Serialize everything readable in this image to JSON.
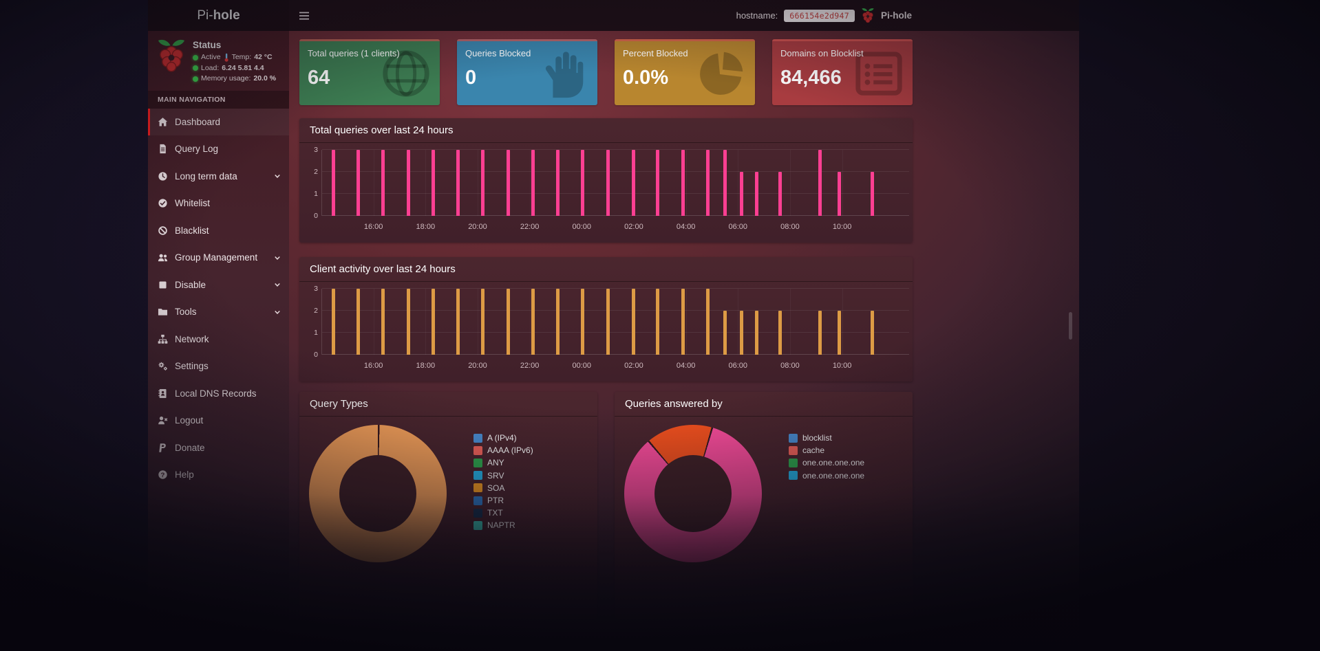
{
  "navbar": {
    "brand_prefix": "Pi-",
    "brand_bold": "hole",
    "hostname_label": "hostname:",
    "hostname_value": "666154e2d947",
    "brand_right": "Pi-hole"
  },
  "sidebar": {
    "status": {
      "title": "Status",
      "active_label": "Active",
      "temp_label": "Temp:",
      "temp_value": "42 °C",
      "load_label": "Load:",
      "load_value": "6.24 5.81 4.4",
      "memory_label": "Memory usage:",
      "memory_value": "20.0 %"
    },
    "section_label": "MAIN NAVIGATION",
    "items": [
      {
        "label": "Dashboard",
        "icon": "home-icon",
        "active": true
      },
      {
        "label": "Query Log",
        "icon": "file-icon"
      },
      {
        "label": "Long term data",
        "icon": "clock-icon",
        "expandable": true
      },
      {
        "label": "Whitelist",
        "icon": "check-circle-icon"
      },
      {
        "label": "Blacklist",
        "icon": "ban-icon"
      },
      {
        "label": "Group Management",
        "icon": "users-icon",
        "expandable": true
      },
      {
        "label": "Disable",
        "icon": "stop-icon",
        "expandable": true
      },
      {
        "label": "Tools",
        "icon": "folder-icon",
        "expandable": true
      },
      {
        "label": "Network",
        "icon": "network-icon"
      },
      {
        "label": "Settings",
        "icon": "gears-icon"
      },
      {
        "label": "Local DNS Records",
        "icon": "address-book-icon"
      },
      {
        "label": "Logout",
        "icon": "logout-icon"
      },
      {
        "label": "Donate",
        "icon": "paypal-icon"
      },
      {
        "label": "Help",
        "icon": "question-icon"
      }
    ]
  },
  "cards": [
    {
      "title": "Total queries (1 clients)",
      "value": "64",
      "color": "#3d7d52",
      "icon": "globe-icon"
    },
    {
      "title": "Queries Blocked",
      "value": "0",
      "color": "#3a85ad",
      "icon": "hand-icon"
    },
    {
      "title": "Percent Blocked",
      "value": "0.0%",
      "color": "#b8862f",
      "icon": "pie-icon"
    },
    {
      "title": "Domains on Blocklist",
      "value": "84,466",
      "color": "#a83c40",
      "icon": "list-icon"
    }
  ],
  "chart_data": [
    {
      "type": "bar",
      "name": "total-queries-chart",
      "title": "Total queries over last 24 hours",
      "color": "#fd3f92",
      "ylim": [
        0,
        3
      ],
      "yticks": [
        0,
        1,
        2,
        3
      ],
      "xticks": [
        "16:00",
        "18:00",
        "20:00",
        "22:00",
        "00:00",
        "02:00",
        "04:00",
        "06:00",
        "08:00",
        "10:00"
      ],
      "xtick_start": 0.0875,
      "xtick_step": 0.0887,
      "bars": [
        {
          "x": 0.016,
          "v": 3
        },
        {
          "x": 0.059,
          "v": 3
        },
        {
          "x": 0.101,
          "v": 3
        },
        {
          "x": 0.144,
          "v": 3
        },
        {
          "x": 0.186,
          "v": 3
        },
        {
          "x": 0.229,
          "v": 3
        },
        {
          "x": 0.271,
          "v": 3
        },
        {
          "x": 0.314,
          "v": 3
        },
        {
          "x": 0.356,
          "v": 3
        },
        {
          "x": 0.399,
          "v": 3
        },
        {
          "x": 0.441,
          "v": 3
        },
        {
          "x": 0.484,
          "v": 3
        },
        {
          "x": 0.527,
          "v": 3
        },
        {
          "x": 0.569,
          "v": 3
        },
        {
          "x": 0.612,
          "v": 3
        },
        {
          "x": 0.654,
          "v": 3
        },
        {
          "x": 0.684,
          "v": 3
        },
        {
          "x": 0.712,
          "v": 2
        },
        {
          "x": 0.737,
          "v": 2
        },
        {
          "x": 0.777,
          "v": 2
        },
        {
          "x": 0.845,
          "v": 3
        },
        {
          "x": 0.878,
          "v": 2
        },
        {
          "x": 0.934,
          "v": 2
        }
      ]
    },
    {
      "type": "bar",
      "name": "client-activity-chart",
      "title": "Client activity over last 24 hours",
      "color": "#dd9b45",
      "ylim": [
        0,
        3
      ],
      "yticks": [
        0,
        1,
        2,
        3
      ],
      "xticks": [
        "16:00",
        "18:00",
        "20:00",
        "22:00",
        "00:00",
        "02:00",
        "04:00",
        "06:00",
        "08:00",
        "10:00"
      ],
      "xtick_start": 0.0875,
      "xtick_step": 0.0887,
      "bars": [
        {
          "x": 0.016,
          "v": 3
        },
        {
          "x": 0.059,
          "v": 3
        },
        {
          "x": 0.101,
          "v": 3
        },
        {
          "x": 0.144,
          "v": 3
        },
        {
          "x": 0.186,
          "v": 3
        },
        {
          "x": 0.229,
          "v": 3
        },
        {
          "x": 0.271,
          "v": 3
        },
        {
          "x": 0.314,
          "v": 3
        },
        {
          "x": 0.356,
          "v": 3
        },
        {
          "x": 0.399,
          "v": 3
        },
        {
          "x": 0.441,
          "v": 3
        },
        {
          "x": 0.484,
          "v": 3
        },
        {
          "x": 0.527,
          "v": 3
        },
        {
          "x": 0.569,
          "v": 3
        },
        {
          "x": 0.612,
          "v": 3
        },
        {
          "x": 0.654,
          "v": 3
        },
        {
          "x": 0.684,
          "v": 2
        },
        {
          "x": 0.712,
          "v": 2
        },
        {
          "x": 0.737,
          "v": 2
        },
        {
          "x": 0.777,
          "v": 2
        },
        {
          "x": 0.845,
          "v": 2
        },
        {
          "x": 0.878,
          "v": 2
        },
        {
          "x": 0.934,
          "v": 2
        }
      ]
    },
    {
      "type": "donut",
      "name": "query-types-chart",
      "title": "Query Types",
      "rotate": 0,
      "hole_color": "#402127",
      "divider_color": "#35191f",
      "segments": [
        {
          "color": "#f9a35b",
          "deg": 358.5,
          "pct": 100
        }
      ],
      "legend": [
        {
          "label": "A (IPv4)",
          "color": "#4a8fd4"
        },
        {
          "label": "AAAA (IPv6)",
          "color": "#f2635a"
        },
        {
          "label": "ANY",
          "color": "#2fa84f"
        },
        {
          "label": "SRV",
          "color": "#25b4e8"
        },
        {
          "label": "SOA",
          "color": "#f49c22"
        },
        {
          "label": "PTR",
          "color": "#2d79c7"
        },
        {
          "label": "TXT",
          "color": "#16304f"
        },
        {
          "label": "NAPTR",
          "color": "#3ed0c0"
        }
      ]
    },
    {
      "type": "donut",
      "name": "queries-answered-by-chart",
      "title": "Queries answered by",
      "rotate": -41,
      "hole_color": "#402127",
      "divider_color": "#35191f",
      "segments": [
        {
          "color": "#f4511e",
          "deg": 55,
          "pct": 15
        },
        {
          "color": "#fb4d9c",
          "deg": 302,
          "pct": 85
        }
      ],
      "legend": [
        {
          "label": "blocklist",
          "color": "#4a8fd4"
        },
        {
          "label": "cache",
          "color": "#f2635a"
        },
        {
          "label": "one.one.one.one",
          "color": "#2fa84f"
        },
        {
          "label": "one.one.one.one",
          "color": "#25b4e8"
        }
      ]
    }
  ]
}
